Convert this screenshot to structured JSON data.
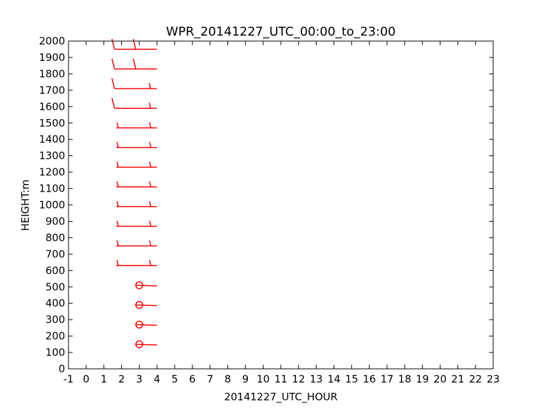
{
  "chart_data": {
    "type": "wind-barb",
    "title": "WPR_20141227_UTC_00:00_to_23:00",
    "xlabel": "20141227_UTC_HOUR",
    "ylabel": "HEIGHT:m",
    "xlim": [
      -1,
      23
    ],
    "ylim": [
      0,
      2000
    ],
    "x_ticks": [
      "-1",
      "0",
      "1",
      "2",
      "3",
      "4",
      "5",
      "6",
      "7",
      "8",
      "9",
      "10",
      "11",
      "12",
      "13",
      "14",
      "15",
      "16",
      "17",
      "18",
      "19",
      "20",
      "21",
      "22",
      "23"
    ],
    "y_ticks": [
      "0",
      "100",
      "200",
      "300",
      "400",
      "500",
      "600",
      "700",
      "800",
      "900",
      "1000",
      "1100",
      "1200",
      "1300",
      "1400",
      "1500",
      "1600",
      "1700",
      "1800",
      "1900",
      "2000"
    ],
    "grid": false,
    "barb_color": "#ff0000",
    "series": [
      {
        "x": 3,
        "barbs": [
          {
            "height": 150,
            "type": "calm"
          },
          {
            "height": 270,
            "type": "calm"
          },
          {
            "height": 390,
            "type": "calm"
          },
          {
            "height": 510,
            "type": "calm"
          },
          {
            "height": 630,
            "shaft_end_x": 1.7,
            "barbs": [
              {
                "at": 0.05,
                "kind": "half"
              },
              {
                "at": 0.85,
                "kind": "half"
              }
            ]
          },
          {
            "height": 750,
            "shaft_end_x": 1.7,
            "barbs": [
              {
                "at": 0.05,
                "kind": "half"
              },
              {
                "at": 0.85,
                "kind": "half"
              }
            ]
          },
          {
            "height": 870,
            "shaft_end_x": 1.7,
            "barbs": [
              {
                "at": 0.05,
                "kind": "half"
              },
              {
                "at": 0.85,
                "kind": "half"
              }
            ]
          },
          {
            "height": 990,
            "shaft_end_x": 1.7,
            "barbs": [
              {
                "at": 0.05,
                "kind": "half"
              },
              {
                "at": 0.85,
                "kind": "half"
              }
            ]
          },
          {
            "height": 1110,
            "shaft_end_x": 1.7,
            "barbs": [
              {
                "at": 0.05,
                "kind": "half"
              },
              {
                "at": 0.85,
                "kind": "half"
              }
            ]
          },
          {
            "height": 1230,
            "shaft_end_x": 1.7,
            "barbs": [
              {
                "at": 0.05,
                "kind": "half"
              },
              {
                "at": 0.85,
                "kind": "half"
              }
            ]
          },
          {
            "height": 1350,
            "shaft_end_x": 1.7,
            "barbs": [
              {
                "at": 0.05,
                "kind": "half"
              },
              {
                "at": 0.85,
                "kind": "half"
              }
            ]
          },
          {
            "height": 1470,
            "shaft_end_x": 1.7,
            "barbs": [
              {
                "at": 0.05,
                "kind": "half"
              },
              {
                "at": 0.85,
                "kind": "half"
              }
            ]
          },
          {
            "height": 1590,
            "shaft_end_x": 1.6,
            "barbs": [
              {
                "at": 0.0,
                "kind": "full"
              },
              {
                "at": 0.85,
                "kind": "half"
              }
            ]
          },
          {
            "height": 1710,
            "shaft_end_x": 1.6,
            "barbs": [
              {
                "at": 0.0,
                "kind": "full"
              },
              {
                "at": 0.85,
                "kind": "half"
              }
            ]
          },
          {
            "height": 1830,
            "shaft_end_x": 1.6,
            "barbs": [
              {
                "at": 0.0,
                "kind": "full"
              },
              {
                "at": 0.5,
                "kind": "full"
              }
            ]
          },
          {
            "height": 1950,
            "shaft_end_x": 1.6,
            "barbs": [
              {
                "at": 0.0,
                "kind": "full"
              },
              {
                "at": 0.5,
                "kind": "full"
              }
            ]
          }
        ]
      }
    ]
  }
}
